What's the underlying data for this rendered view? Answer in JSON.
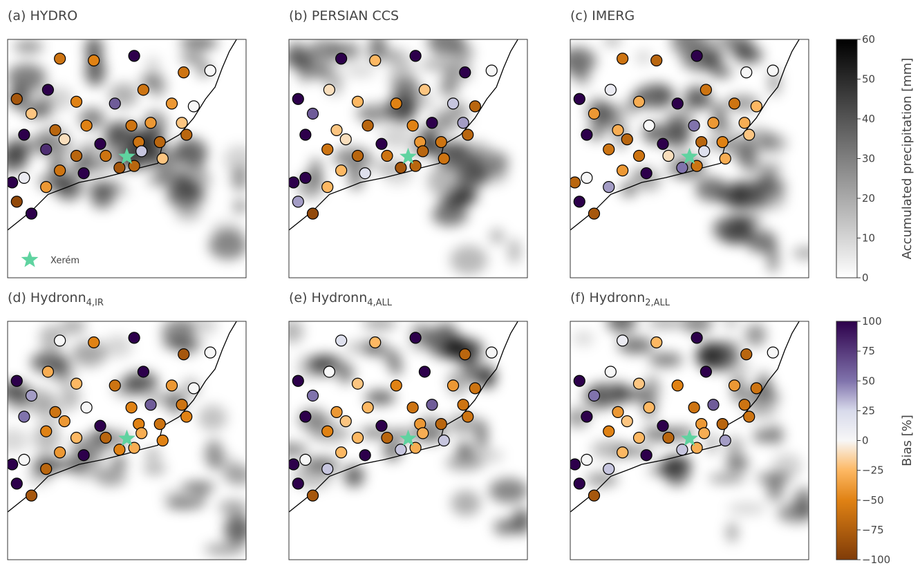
{
  "chart_data": {
    "type": "map",
    "xlim": [
      -44.6,
      -42.0
    ],
    "ylim": [
      -23.9,
      -21.3
    ],
    "stations": {
      "lon": [
        -44.03,
        -43.22,
        -43.66,
        -42.68,
        -42.39,
        -44.16,
        -44.5,
        -44.34,
        -43.85,
        -43.43,
        -43.12,
        -42.81,
        -42.57,
        -44.08,
        -43.74,
        -43.25,
        -43.04,
        -42.7,
        -44.42,
        -43.98,
        -44.18,
        -43.59,
        -43.17,
        -42.94,
        -43.85,
        -43.53,
        -43.14,
        -42.91,
        -43.38,
        -43.22,
        -44.03,
        -43.77,
        -44.42,
        -44.18,
        -44.55,
        -42.65,
        -44.34,
        -44.5
      ],
      "lat": [
        -21.51,
        -21.48,
        -21.53,
        -21.66,
        -21.64,
        -21.85,
        -21.95,
        -22.11,
        -21.98,
        -22.0,
        -21.85,
        -22.0,
        -22.03,
        -22.29,
        -22.24,
        -22.24,
        -22.21,
        -22.21,
        -22.34,
        -22.39,
        -22.5,
        -22.44,
        -22.42,
        -22.42,
        -22.57,
        -22.57,
        -22.52,
        -22.6,
        -22.7,
        -22.68,
        -22.73,
        -22.76,
        -22.81,
        -22.91,
        -22.86,
        -22.34,
        -23.2,
        -23.07
      ]
    },
    "panels": [
      {
        "title": "(a) HYDRO",
        "bias": [
          -60,
          100,
          -50,
          -60,
          0,
          100,
          -80,
          -20,
          -50,
          60,
          -60,
          -40,
          0,
          -70,
          -50,
          -60,
          -40,
          -20,
          100,
          -10,
          80,
          100,
          -60,
          -70,
          -70,
          -60,
          30,
          -20,
          -80,
          -70,
          -60,
          100,
          10,
          -40,
          100,
          -70,
          100,
          -90
        ]
      },
      {
        "title": "(b) PERSIAN CCS",
        "bias": [
          100,
          100,
          -25,
          100,
          0,
          -10,
          100,
          60,
          -25,
          -50,
          -20,
          30,
          -70,
          -20,
          -70,
          -50,
          100,
          40,
          100,
          -10,
          -60,
          100,
          -40,
          -60,
          -70,
          -60,
          -70,
          -60,
          -80,
          -70,
          -25,
          20,
          100,
          -25,
          100,
          -70,
          -90,
          40
        ]
      },
      {
        "title": "(c) IMERG",
        "bias": [
          -60,
          100,
          -70,
          0,
          0,
          10,
          100,
          -40,
          -30,
          100,
          -60,
          -60,
          -25,
          -30,
          0,
          50,
          -40,
          -30,
          100,
          -70,
          -60,
          100,
          -70,
          -50,
          -60,
          -10,
          20,
          -30,
          50,
          -60,
          -40,
          100,
          0,
          40,
          -70,
          -20,
          -80,
          100
        ]
      },
      {
        "title": "(d) Hydronn",
        "subscript": "4,IR",
        "bias": [
          0,
          100,
          -50,
          -80,
          0,
          -30,
          100,
          40,
          -25,
          -60,
          100,
          -40,
          0,
          -60,
          0,
          -50,
          60,
          -60,
          50,
          -40,
          -50,
          100,
          -50,
          -60,
          -25,
          -70,
          -30,
          -50,
          -50,
          -30,
          -40,
          100,
          0,
          -70,
          100,
          -50,
          -80,
          100
        ]
      },
      {
        "title": "(e) Hydronn",
        "subscript": "4,ALL",
        "bias": [
          20,
          100,
          -25,
          -70,
          0,
          0,
          100,
          50,
          -20,
          -50,
          100,
          -40,
          -60,
          -40,
          -25,
          -60,
          60,
          -60,
          100,
          -20,
          -50,
          100,
          -40,
          -70,
          -25,
          -70,
          -30,
          30,
          30,
          -30,
          -25,
          100,
          0,
          30,
          100,
          -60,
          -80,
          100
        ]
      },
      {
        "title": "(f) Hydronn",
        "subscript": "2,ALL",
        "bias": [
          10,
          100,
          -25,
          -70,
          0,
          0,
          100,
          50,
          -20,
          -50,
          100,
          -40,
          -60,
          -40,
          -25,
          -60,
          60,
          -60,
          100,
          -20,
          -50,
          100,
          -40,
          -70,
          -25,
          -70,
          -30,
          40,
          30,
          -30,
          -25,
          100,
          0,
          30,
          100,
          -60,
          -80,
          100
        ]
      }
    ],
    "legend": {
      "label": "Xerém",
      "lon": -43.3,
      "lat": -22.58,
      "color": "#5fd3a0"
    },
    "precip_colorbar": {
      "label": "Accumulated precipitation [mm]",
      "lim": [
        0,
        60
      ],
      "ticks": [
        0,
        10,
        20,
        30,
        40,
        50,
        60
      ]
    },
    "bias_colorbar": {
      "label": "Bias [%]",
      "lim": [
        -100,
        100
      ],
      "ticks": [
        {
          "value": -100,
          "label": "−100"
        },
        {
          "value": -75,
          "label": "−75"
        },
        {
          "value": -50,
          "label": "−50"
        },
        {
          "value": -25,
          "label": "−25"
        },
        0,
        25,
        50,
        75,
        100
      ]
    }
  }
}
